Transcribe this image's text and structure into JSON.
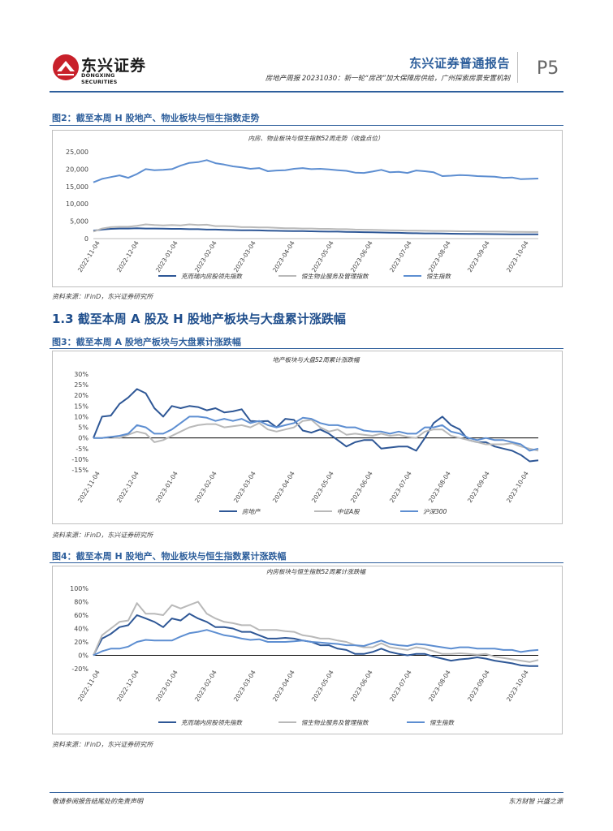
{
  "header": {
    "logo_name": "东兴证券",
    "logo_sub": "DONGXING SECURITIES",
    "report_type": "东兴证券普通报告",
    "report_subtitle": "房地产周报 20231030：新一轮“房改”加大保障房供给，广州探索房票安置机制",
    "page": "P5"
  },
  "figures": [
    {
      "title": "图2：截至本周 H 股地产、物业板块与恒生指数走势",
      "source": "资料来源：iFinD，东兴证券研究所"
    },
    {
      "section": "1.3 截至本周 A 股及 H 股地产板块与大盘累计涨跌幅"
    },
    {
      "title": "图3：截至本周 A 股地产板块与大盘累计涨跌幅",
      "source": "资料来源：iFinD，东兴证券研究所"
    },
    {
      "title": "图4：截至本周 H 股地产、物业板块与恒生指数累计涨跌幅",
      "source": "资料来源：iFinD，东兴证券研究所"
    }
  ],
  "dates": [
    "2022-11-04",
    "2022-12-04",
    "2023-01-04",
    "2023-02-04",
    "2023-03-04",
    "2023-04-04",
    "2023-05-04",
    "2023-06-04",
    "2023-07-04",
    "2023-08-04",
    "2023-09-04",
    "2023-10-04"
  ],
  "colors": {
    "dark_blue": "#2e5796",
    "gray": "#b9b9b9",
    "light_blue": "#5d8ed1",
    "accent": "#2e5f9c",
    "logo_red": "#c8202a"
  },
  "chart_data": [
    {
      "type": "line",
      "title": "内房、物业板块与恒生指数52周走势（收盘点位）",
      "ylim": [
        0,
        25000
      ],
      "yticks": [
        "0",
        "5,000",
        "10,000",
        "15,000",
        "20,000",
        "25,000"
      ],
      "legend": [
        "克而瑞内房股领先指数",
        "恒生物业服务及管理指数",
        "恒生指数"
      ],
      "series": [
        {
          "name": "克而瑞内房股领先指数",
          "values": [
            2300,
            2600,
            2800,
            2900,
            2900,
            3000,
            2900,
            2900,
            2850,
            2800,
            2800,
            2700,
            2700,
            2600,
            2600,
            2500,
            2450,
            2400,
            2400,
            2350,
            2300,
            2250,
            2200,
            2150,
            2150,
            2100,
            2050,
            2000,
            2000,
            1950,
            1900,
            1850,
            1800,
            1750,
            1700,
            1650,
            1600,
            1550,
            1500,
            1500,
            1450,
            1400,
            1380,
            1350,
            1330,
            1300,
            1280,
            1260,
            1250,
            1240,
            1230,
            1220
          ]
        },
        {
          "name": "恒生物业服务及管理指数",
          "values": [
            2000,
            2900,
            3300,
            3400,
            3400,
            3700,
            4100,
            3900,
            3800,
            3900,
            3800,
            4100,
            3900,
            4000,
            3600,
            3600,
            3500,
            3300,
            3300,
            3200,
            3200,
            3100,
            3000,
            3000,
            2900,
            2900,
            2800,
            2800,
            2700,
            2700,
            2600,
            2550,
            2500,
            2450,
            2400,
            2350,
            2300,
            2300,
            2250,
            2200,
            2200,
            2150,
            2100,
            2100,
            2050,
            2000,
            2000,
            2000,
            1950,
            1950,
            1900,
            1900
          ]
        },
        {
          "name": "恒生指数",
          "values": [
            16200,
            17200,
            17700,
            18200,
            17500,
            18600,
            20000,
            19700,
            19800,
            20000,
            21000,
            21800,
            22000,
            22600,
            21700,
            21300,
            20800,
            20500,
            20100,
            20300,
            19400,
            19600,
            19700,
            20100,
            20300,
            20000,
            20100,
            19900,
            19700,
            19500,
            19000,
            18900,
            19300,
            19800,
            19100,
            19200,
            18900,
            19600,
            19400,
            19100,
            18000,
            18100,
            18300,
            18200,
            18000,
            17900,
            17800,
            17500,
            17600,
            17100,
            17200,
            17300
          ]
        }
      ]
    },
    {
      "type": "line",
      "title": "地产板块与大盘52周累计涨跌幅",
      "ylim": [
        -15,
        30
      ],
      "yticks": [
        "-15%",
        "-10%",
        "-5%",
        "0%",
        "5%",
        "10%",
        "15%",
        "20%",
        "25%",
        "30%"
      ],
      "legend": [
        "房地产",
        "中证A股",
        "沪深300"
      ],
      "series": [
        {
          "name": "房地产",
          "values": [
            0,
            10,
            10.5,
            16,
            19,
            23,
            21,
            14,
            10,
            15,
            14,
            15,
            14.5,
            13,
            14,
            12,
            12.5,
            13.5,
            8,
            7.8,
            8,
            5,
            9,
            8.5,
            3.5,
            2.5,
            4,
            2,
            -1,
            -4,
            -2,
            -1,
            -1,
            -5,
            -4.5,
            -4,
            -4,
            -6,
            0,
            7,
            10,
            6,
            4,
            -1,
            -2,
            -2,
            -4,
            -5,
            -6,
            -8,
            -11,
            -10.5
          ]
        },
        {
          "name": "中证A股",
          "values": [
            0,
            0,
            0.5,
            0,
            1.5,
            3,
            2,
            -2,
            -1,
            1,
            3,
            5,
            6,
            6.5,
            6.5,
            5,
            5.5,
            6,
            5,
            7,
            4,
            3,
            4,
            5,
            8,
            8.5,
            5,
            3,
            4,
            1.5,
            2,
            1.5,
            1,
            2,
            1,
            1.5,
            0.5,
            0,
            3,
            4,
            4,
            1,
            0,
            -1,
            -2,
            -3,
            -3,
            -3,
            -2.5,
            -4,
            -5,
            -6
          ]
        },
        {
          "name": "沪深300",
          "values": [
            0,
            0,
            0.5,
            1,
            2,
            6,
            5,
            2,
            2,
            4,
            7,
            10,
            10,
            9.5,
            8,
            9,
            8,
            9,
            7,
            8,
            6,
            5,
            6,
            7,
            9.5,
            9,
            7,
            6,
            6,
            5,
            5,
            3.5,
            3,
            3,
            2,
            3,
            2,
            2,
            5,
            5,
            6,
            3,
            2,
            0,
            -1,
            0,
            -1,
            -1,
            -2,
            -3,
            -6,
            -5
          ]
        }
      ]
    },
    {
      "type": "line",
      "title": "内房板块与恒生指数52周累计涨跌幅",
      "ylim": [
        -20,
        100
      ],
      "yticks": [
        "-20%",
        "0%",
        "20%",
        "40%",
        "60%",
        "80%",
        "100%"
      ],
      "legend": [
        "克而瑞内房股领先指数",
        "恒生物业服务及管理指数",
        "恒生指数"
      ],
      "series": [
        {
          "name": "克而瑞内房股领先指数",
          "values": [
            0,
            25,
            32,
            42,
            45,
            60,
            55,
            50,
            42,
            55,
            52,
            62,
            55,
            50,
            42,
            42,
            40,
            35,
            35,
            30,
            25,
            25,
            26,
            25,
            22,
            20,
            15,
            15,
            10,
            8,
            2,
            2,
            5,
            10,
            5,
            2,
            0,
            2,
            2,
            -2,
            -5,
            -8,
            -6,
            -5,
            -3,
            -5,
            -8,
            -10,
            -12,
            -15,
            -16,
            -16
          ]
        },
        {
          "name": "恒生物业服务及管理指数",
          "values": [
            0,
            30,
            40,
            50,
            52,
            78,
            62,
            62,
            60,
            75,
            70,
            75,
            80,
            62,
            55,
            50,
            48,
            45,
            45,
            38,
            38,
            38,
            36,
            35,
            30,
            28,
            25,
            25,
            22,
            20,
            15,
            12,
            12,
            18,
            12,
            10,
            8,
            12,
            10,
            6,
            2,
            2,
            3,
            2,
            1,
            2,
            -2,
            -4,
            -6,
            -8,
            -10,
            -7
          ]
        },
        {
          "name": "恒生指数",
          "values": [
            0,
            6,
            10,
            10,
            13,
            20,
            23,
            22,
            22,
            22,
            28,
            33,
            35,
            38,
            34,
            30,
            28,
            25,
            23,
            24,
            20,
            20,
            20,
            21,
            22,
            20,
            19,
            18,
            17,
            15,
            15,
            14,
            18,
            22,
            17,
            15,
            14,
            17,
            16,
            14,
            12,
            10,
            12,
            12,
            10,
            10,
            10,
            8,
            8,
            5,
            7,
            8
          ]
        }
      ]
    }
  ]
}
